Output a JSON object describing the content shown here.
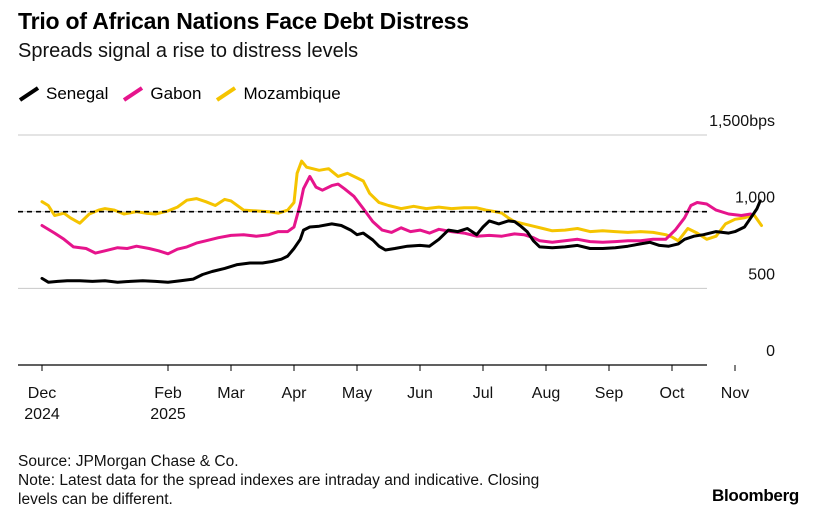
{
  "header": {
    "title": "Trio of African Nations Face Debt Distress",
    "subtitle": "Spreads signal a rise to distress levels"
  },
  "footer": {
    "source": "Source: JPMorgan Chase & Co.",
    "note_line1": "Note: Latest data for the spread indexes are intraday and indicative. Closing",
    "note_line2": "levels can be different.",
    "brand": "Bloomberg"
  },
  "colors": {
    "Senegal": "#000000",
    "Gabon": "#e6148c",
    "Mozambique": "#f5c400",
    "grid": "#c8c8c8",
    "threshold": "#000000"
  },
  "chart_data": {
    "type": "line",
    "title": "Trio of African Nations Face Debt Distress",
    "subtitle": "Spreads signal a rise to distress levels",
    "xlabel": "",
    "ylabel": "bps",
    "ylim": [
      0,
      1500
    ],
    "yticks": [
      {
        "value": 0,
        "label": "0"
      },
      {
        "value": 500,
        "label": "500"
      },
      {
        "value": 1000,
        "label": "1,000"
      },
      {
        "value": 1500,
        "label": "1,500bps"
      }
    ],
    "threshold": 1000,
    "xticks": [
      {
        "month": 0,
        "label1": "Dec",
        "label2": "2024"
      },
      {
        "month": 2,
        "label1": "Feb",
        "label2": "2025"
      },
      {
        "month": 3,
        "label1": "Mar",
        "label2": ""
      },
      {
        "month": 4,
        "label1": "Apr",
        "label2": ""
      },
      {
        "month": 5,
        "label1": "May",
        "label2": ""
      },
      {
        "month": 6,
        "label1": "Jun",
        "label2": ""
      },
      {
        "month": 7,
        "label1": "Jul",
        "label2": ""
      },
      {
        "month": 8,
        "label1": "Aug",
        "label2": ""
      },
      {
        "month": 9,
        "label1": "Sep",
        "label2": ""
      },
      {
        "month": 10,
        "label1": "Oct",
        "label2": ""
      },
      {
        "month": 11,
        "label1": "Nov",
        "label2": ""
      }
    ],
    "x_unit": "months since Dec 1, 2024",
    "series": [
      {
        "name": "Senegal",
        "points": [
          [
            0.0,
            565
          ],
          [
            0.1,
            540
          ],
          [
            0.25,
            545
          ],
          [
            0.4,
            550
          ],
          [
            0.6,
            550
          ],
          [
            0.8,
            545
          ],
          [
            1.0,
            550
          ],
          [
            1.2,
            540
          ],
          [
            1.4,
            545
          ],
          [
            1.6,
            550
          ],
          [
            1.8,
            545
          ],
          [
            2.0,
            540
          ],
          [
            2.2,
            550
          ],
          [
            2.4,
            560
          ],
          [
            2.55,
            590
          ],
          [
            2.7,
            610
          ],
          [
            2.9,
            630
          ],
          [
            3.1,
            655
          ],
          [
            3.3,
            665
          ],
          [
            3.5,
            665
          ],
          [
            3.65,
            675
          ],
          [
            3.8,
            690
          ],
          [
            3.9,
            710
          ],
          [
            4.0,
            760
          ],
          [
            4.1,
            820
          ],
          [
            4.15,
            880
          ],
          [
            4.25,
            900
          ],
          [
            4.4,
            905
          ],
          [
            4.6,
            920
          ],
          [
            4.75,
            910
          ],
          [
            4.9,
            880
          ],
          [
            5.0,
            850
          ],
          [
            5.1,
            860
          ],
          [
            5.25,
            815
          ],
          [
            5.35,
            775
          ],
          [
            5.45,
            750
          ],
          [
            5.6,
            760
          ],
          [
            5.8,
            775
          ],
          [
            6.0,
            780
          ],
          [
            6.15,
            775
          ],
          [
            6.3,
            820
          ],
          [
            6.45,
            880
          ],
          [
            6.6,
            870
          ],
          [
            6.75,
            890
          ],
          [
            6.9,
            850
          ],
          [
            7.0,
            900
          ],
          [
            7.1,
            940
          ],
          [
            7.25,
            920
          ],
          [
            7.4,
            940
          ],
          [
            7.5,
            935
          ],
          [
            7.6,
            905
          ],
          [
            7.7,
            870
          ],
          [
            7.8,
            810
          ],
          [
            7.9,
            770
          ],
          [
            8.1,
            765
          ],
          [
            8.3,
            770
          ],
          [
            8.5,
            780
          ],
          [
            8.7,
            760
          ],
          [
            8.9,
            760
          ],
          [
            9.1,
            765
          ],
          [
            9.3,
            775
          ],
          [
            9.5,
            790
          ],
          [
            9.65,
            800
          ],
          [
            9.8,
            780
          ],
          [
            9.95,
            775
          ],
          [
            10.1,
            790
          ],
          [
            10.2,
            820
          ],
          [
            10.35,
            840
          ],
          [
            10.5,
            850
          ],
          [
            10.7,
            870
          ],
          [
            10.9,
            860
          ],
          [
            11.0,
            870
          ],
          [
            11.15,
            900
          ],
          [
            11.25,
            960
          ],
          [
            11.35,
            1020
          ],
          [
            11.4,
            1070
          ]
        ]
      },
      {
        "name": "Gabon",
        "points": [
          [
            0.0,
            910
          ],
          [
            0.2,
            860
          ],
          [
            0.35,
            820
          ],
          [
            0.5,
            770
          ],
          [
            0.7,
            760
          ],
          [
            0.85,
            730
          ],
          [
            1.0,
            745
          ],
          [
            1.2,
            765
          ],
          [
            1.35,
            760
          ],
          [
            1.5,
            775
          ],
          [
            1.7,
            760
          ],
          [
            1.85,
            745
          ],
          [
            2.0,
            725
          ],
          [
            2.15,
            755
          ],
          [
            2.3,
            770
          ],
          [
            2.45,
            795
          ],
          [
            2.6,
            810
          ],
          [
            2.8,
            830
          ],
          [
            3.0,
            845
          ],
          [
            3.2,
            850
          ],
          [
            3.4,
            840
          ],
          [
            3.6,
            850
          ],
          [
            3.75,
            870
          ],
          [
            3.9,
            870
          ],
          [
            4.0,
            900
          ],
          [
            4.1,
            1050
          ],
          [
            4.15,
            1150
          ],
          [
            4.25,
            1230
          ],
          [
            4.35,
            1160
          ],
          [
            4.45,
            1140
          ],
          [
            4.6,
            1170
          ],
          [
            4.7,
            1180
          ],
          [
            4.8,
            1150
          ],
          [
            4.95,
            1100
          ],
          [
            5.1,
            1020
          ],
          [
            5.25,
            935
          ],
          [
            5.4,
            880
          ],
          [
            5.55,
            865
          ],
          [
            5.7,
            895
          ],
          [
            5.85,
            870
          ],
          [
            6.0,
            880
          ],
          [
            6.15,
            860
          ],
          [
            6.3,
            885
          ],
          [
            6.5,
            870
          ],
          [
            6.7,
            860
          ],
          [
            6.9,
            840
          ],
          [
            7.1,
            845
          ],
          [
            7.3,
            840
          ],
          [
            7.5,
            855
          ],
          [
            7.65,
            850
          ],
          [
            7.8,
            830
          ],
          [
            7.9,
            810
          ],
          [
            8.1,
            800
          ],
          [
            8.3,
            810
          ],
          [
            8.5,
            820
          ],
          [
            8.7,
            805
          ],
          [
            8.9,
            800
          ],
          [
            9.1,
            805
          ],
          [
            9.3,
            810
          ],
          [
            9.5,
            810
          ],
          [
            9.7,
            820
          ],
          [
            9.9,
            820
          ],
          [
            10.05,
            880
          ],
          [
            10.2,
            960
          ],
          [
            10.3,
            1040
          ],
          [
            10.4,
            1060
          ],
          [
            10.55,
            1050
          ],
          [
            10.7,
            1010
          ],
          [
            10.9,
            985
          ],
          [
            11.1,
            975
          ],
          [
            11.25,
            985
          ]
        ]
      },
      {
        "name": "Mozambique",
        "points": [
          [
            0.0,
            1065
          ],
          [
            0.1,
            1040
          ],
          [
            0.2,
            975
          ],
          [
            0.35,
            990
          ],
          [
            0.45,
            960
          ],
          [
            0.6,
            925
          ],
          [
            0.75,
            985
          ],
          [
            0.9,
            1010
          ],
          [
            1.0,
            1020
          ],
          [
            1.15,
            1010
          ],
          [
            1.3,
            985
          ],
          [
            1.5,
            1000
          ],
          [
            1.65,
            990
          ],
          [
            1.8,
            985
          ],
          [
            2.0,
            1005
          ],
          [
            2.15,
            1030
          ],
          [
            2.3,
            1075
          ],
          [
            2.45,
            1085
          ],
          [
            2.6,
            1065
          ],
          [
            2.75,
            1040
          ],
          [
            2.9,
            1080
          ],
          [
            3.0,
            1070
          ],
          [
            3.2,
            1010
          ],
          [
            3.4,
            1005
          ],
          [
            3.6,
            1000
          ],
          [
            3.75,
            990
          ],
          [
            3.9,
            1010
          ],
          [
            4.0,
            1060
          ],
          [
            4.05,
            1250
          ],
          [
            4.12,
            1330
          ],
          [
            4.2,
            1290
          ],
          [
            4.4,
            1270
          ],
          [
            4.55,
            1280
          ],
          [
            4.7,
            1230
          ],
          [
            4.85,
            1250
          ],
          [
            5.0,
            1220
          ],
          [
            5.1,
            1200
          ],
          [
            5.2,
            1120
          ],
          [
            5.35,
            1060
          ],
          [
            5.5,
            1040
          ],
          [
            5.7,
            1020
          ],
          [
            5.9,
            1035
          ],
          [
            6.1,
            1020
          ],
          [
            6.3,
            1030
          ],
          [
            6.5,
            1020
          ],
          [
            6.7,
            1025
          ],
          [
            6.9,
            1025
          ],
          [
            7.05,
            1010
          ],
          [
            7.2,
            1000
          ],
          [
            7.3,
            990
          ],
          [
            7.4,
            960
          ],
          [
            7.5,
            935
          ],
          [
            7.65,
            920
          ],
          [
            7.8,
            905
          ],
          [
            7.95,
            890
          ],
          [
            8.1,
            875
          ],
          [
            8.3,
            880
          ],
          [
            8.5,
            890
          ],
          [
            8.7,
            870
          ],
          [
            8.9,
            875
          ],
          [
            9.1,
            870
          ],
          [
            9.3,
            865
          ],
          [
            9.5,
            870
          ],
          [
            9.7,
            865
          ],
          [
            9.9,
            850
          ],
          [
            10.0,
            835
          ],
          [
            10.1,
            810
          ],
          [
            10.25,
            890
          ],
          [
            10.4,
            860
          ],
          [
            10.55,
            820
          ],
          [
            10.7,
            840
          ],
          [
            10.85,
            920
          ],
          [
            11.0,
            950
          ],
          [
            11.15,
            960
          ],
          [
            11.3,
            980
          ],
          [
            11.42,
            910
          ]
        ]
      }
    ]
  }
}
